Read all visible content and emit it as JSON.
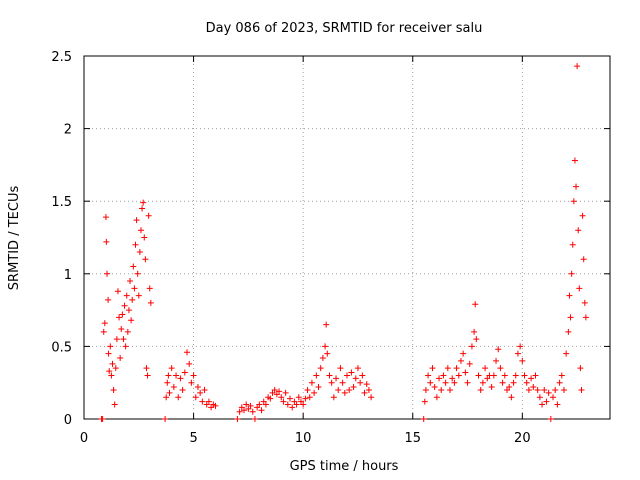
{
  "chart_data": {
    "type": "scatter",
    "title": "Day 086 of 2023, SRMTID for receiver salu",
    "xlabel": "GPS time / hours",
    "ylabel": "SRMTID / TECUs",
    "xlim": [
      0,
      24
    ],
    "ylim": [
      0,
      2.5
    ],
    "x_ticks": [
      0,
      5,
      10,
      15,
      20
    ],
    "y_ticks": [
      0,
      0.5,
      1,
      1.5,
      2,
      2.5
    ],
    "x_tick_labels": [
      "0",
      "5",
      "10",
      "15",
      "20"
    ],
    "y_tick_labels": [
      "0",
      "0.5",
      "1",
      "1.5",
      "2",
      "2.5"
    ],
    "grid": true,
    "marker": "plus",
    "color": "#ff0000",
    "series": [
      {
        "name": "SRMTID",
        "points": [
          [
            0.8,
            0.0
          ],
          [
            0.85,
            0.0
          ],
          [
            0.9,
            0.6
          ],
          [
            0.95,
            0.66
          ],
          [
            1.0,
            1.39
          ],
          [
            1.02,
            1.22
          ],
          [
            1.05,
            1.0
          ],
          [
            1.1,
            0.82
          ],
          [
            1.12,
            0.45
          ],
          [
            1.15,
            0.33
          ],
          [
            1.2,
            0.5
          ],
          [
            1.25,
            0.3
          ],
          [
            1.3,
            0.38
          ],
          [
            1.35,
            0.2
          ],
          [
            1.4,
            0.1
          ],
          [
            1.45,
            0.35
          ],
          [
            1.5,
            0.55
          ],
          [
            1.55,
            0.88
          ],
          [
            1.6,
            0.7
          ],
          [
            1.65,
            0.42
          ],
          [
            1.7,
            0.62
          ],
          [
            1.75,
            0.72
          ],
          [
            1.8,
            0.55
          ],
          [
            1.85,
            0.78
          ],
          [
            1.9,
            0.5
          ],
          [
            1.95,
            0.85
          ],
          [
            2.0,
            0.6
          ],
          [
            2.05,
            0.75
          ],
          [
            2.1,
            0.95
          ],
          [
            2.15,
            0.68
          ],
          [
            2.2,
            0.82
          ],
          [
            2.25,
            1.05
          ],
          [
            2.3,
            0.9
          ],
          [
            2.35,
            1.2
          ],
          [
            2.4,
            1.37
          ],
          [
            2.45,
            1.0
          ],
          [
            2.5,
            0.85
          ],
          [
            2.55,
            1.15
          ],
          [
            2.6,
            1.3
          ],
          [
            2.65,
            1.45
          ],
          [
            2.7,
            1.49
          ],
          [
            2.75,
            1.25
          ],
          [
            2.8,
            1.1
          ],
          [
            2.85,
            0.35
          ],
          [
            2.9,
            0.3
          ],
          [
            2.95,
            1.4
          ],
          [
            3.0,
            0.9
          ],
          [
            3.05,
            0.8
          ],
          [
            3.7,
            0.0
          ],
          [
            3.75,
            0.15
          ],
          [
            3.8,
            0.25
          ],
          [
            3.85,
            0.3
          ],
          [
            3.9,
            0.18
          ],
          [
            4.0,
            0.35
          ],
          [
            4.1,
            0.22
          ],
          [
            4.2,
            0.3
          ],
          [
            4.3,
            0.15
          ],
          [
            4.4,
            0.28
          ],
          [
            4.5,
            0.2
          ],
          [
            4.6,
            0.32
          ],
          [
            4.7,
            0.46
          ],
          [
            4.8,
            0.38
          ],
          [
            4.9,
            0.25
          ],
          [
            5.0,
            0.3
          ],
          [
            5.1,
            0.15
          ],
          [
            5.2,
            0.22
          ],
          [
            5.3,
            0.18
          ],
          [
            5.4,
            0.12
          ],
          [
            5.5,
            0.2
          ],
          [
            5.6,
            0.1
          ],
          [
            5.7,
            0.12
          ],
          [
            5.8,
            0.08
          ],
          [
            5.9,
            0.1
          ],
          [
            6.0,
            0.09
          ],
          [
            7.0,
            0.0
          ],
          [
            7.1,
            0.05
          ],
          [
            7.2,
            0.08
          ],
          [
            7.3,
            0.06
          ],
          [
            7.4,
            0.1
          ],
          [
            7.5,
            0.07
          ],
          [
            7.6,
            0.09
          ],
          [
            7.7,
            0.05
          ],
          [
            7.8,
            0.0
          ],
          [
            7.9,
            0.08
          ],
          [
            8.0,
            0.1
          ],
          [
            8.1,
            0.06
          ],
          [
            8.2,
            0.12
          ],
          [
            8.3,
            0.1
          ],
          [
            8.4,
            0.15
          ],
          [
            8.5,
            0.14
          ],
          [
            8.6,
            0.18
          ],
          [
            8.7,
            0.2
          ],
          [
            8.8,
            0.17
          ],
          [
            8.9,
            0.19
          ],
          [
            9.0,
            0.15
          ],
          [
            9.1,
            0.12
          ],
          [
            9.2,
            0.18
          ],
          [
            9.3,
            0.1
          ],
          [
            9.4,
            0.14
          ],
          [
            9.5,
            0.08
          ],
          [
            9.6,
            0.12
          ],
          [
            9.7,
            0.1
          ],
          [
            9.8,
            0.15
          ],
          [
            9.9,
            0.12
          ],
          [
            10.0,
            0.1
          ],
          [
            10.1,
            0.14
          ],
          [
            10.2,
            0.2
          ],
          [
            10.3,
            0.15
          ],
          [
            10.4,
            0.25
          ],
          [
            10.5,
            0.18
          ],
          [
            10.6,
            0.3
          ],
          [
            10.7,
            0.22
          ],
          [
            10.8,
            0.35
          ],
          [
            10.9,
            0.42
          ],
          [
            11.0,
            0.5
          ],
          [
            11.05,
            0.65
          ],
          [
            11.1,
            0.45
          ],
          [
            11.2,
            0.3
          ],
          [
            11.3,
            0.25
          ],
          [
            11.4,
            0.15
          ],
          [
            11.5,
            0.28
          ],
          [
            11.6,
            0.2
          ],
          [
            11.7,
            0.35
          ],
          [
            11.8,
            0.25
          ],
          [
            11.9,
            0.18
          ],
          [
            12.0,
            0.3
          ],
          [
            12.1,
            0.2
          ],
          [
            12.2,
            0.32
          ],
          [
            12.3,
            0.22
          ],
          [
            12.4,
            0.28
          ],
          [
            12.5,
            0.35
          ],
          [
            12.6,
            0.25
          ],
          [
            12.7,
            0.3
          ],
          [
            12.8,
            0.18
          ],
          [
            12.9,
            0.24
          ],
          [
            13.0,
            0.2
          ],
          [
            13.1,
            0.15
          ],
          [
            15.5,
            0.0
          ],
          [
            15.55,
            0.12
          ],
          [
            15.6,
            0.2
          ],
          [
            15.7,
            0.3
          ],
          [
            15.8,
            0.25
          ],
          [
            15.9,
            0.35
          ],
          [
            16.0,
            0.22
          ],
          [
            16.1,
            0.15
          ],
          [
            16.2,
            0.28
          ],
          [
            16.3,
            0.2
          ],
          [
            16.4,
            0.3
          ],
          [
            16.5,
            0.25
          ],
          [
            16.6,
            0.35
          ],
          [
            16.7,
            0.2
          ],
          [
            16.8,
            0.28
          ],
          [
            16.9,
            0.25
          ],
          [
            17.0,
            0.35
          ],
          [
            17.1,
            0.3
          ],
          [
            17.2,
            0.4
          ],
          [
            17.3,
            0.45
          ],
          [
            17.4,
            0.32
          ],
          [
            17.5,
            0.25
          ],
          [
            17.6,
            0.38
          ],
          [
            17.7,
            0.5
          ],
          [
            17.8,
            0.6
          ],
          [
            17.85,
            0.79
          ],
          [
            17.9,
            0.55
          ],
          [
            18.0,
            0.3
          ],
          [
            18.1,
            0.2
          ],
          [
            18.2,
            0.25
          ],
          [
            18.3,
            0.35
          ],
          [
            18.4,
            0.28
          ],
          [
            18.5,
            0.3
          ],
          [
            18.6,
            0.22
          ],
          [
            18.7,
            0.3
          ],
          [
            18.8,
            0.4
          ],
          [
            18.9,
            0.48
          ],
          [
            19.0,
            0.35
          ],
          [
            19.1,
            0.25
          ],
          [
            19.2,
            0.3
          ],
          [
            19.3,
            0.2
          ],
          [
            19.4,
            0.22
          ],
          [
            19.5,
            0.15
          ],
          [
            19.6,
            0.25
          ],
          [
            19.7,
            0.3
          ],
          [
            19.8,
            0.45
          ],
          [
            19.9,
            0.5
          ],
          [
            20.0,
            0.4
          ],
          [
            20.1,
            0.3
          ],
          [
            20.2,
            0.25
          ],
          [
            20.3,
            0.2
          ],
          [
            20.4,
            0.28
          ],
          [
            20.5,
            0.22
          ],
          [
            20.6,
            0.3
          ],
          [
            20.7,
            0.2
          ],
          [
            20.8,
            0.15
          ],
          [
            20.9,
            0.1
          ],
          [
            21.0,
            0.2
          ],
          [
            21.1,
            0.12
          ],
          [
            21.2,
            0.18
          ],
          [
            21.3,
            0.0
          ],
          [
            21.4,
            0.15
          ],
          [
            21.5,
            0.2
          ],
          [
            21.6,
            0.1
          ],
          [
            21.7,
            0.25
          ],
          [
            21.8,
            0.3
          ],
          [
            21.9,
            0.2
          ],
          [
            22.0,
            0.45
          ],
          [
            22.1,
            0.6
          ],
          [
            22.15,
            0.85
          ],
          [
            22.2,
            0.7
          ],
          [
            22.25,
            1.0
          ],
          [
            22.3,
            1.2
          ],
          [
            22.35,
            1.5
          ],
          [
            22.4,
            1.78
          ],
          [
            22.45,
            1.6
          ],
          [
            22.5,
            2.43
          ],
          [
            22.55,
            1.3
          ],
          [
            22.6,
            0.9
          ],
          [
            22.65,
            0.35
          ],
          [
            22.7,
            0.2
          ],
          [
            22.75,
            1.4
          ],
          [
            22.8,
            1.1
          ],
          [
            22.85,
            0.8
          ],
          [
            22.9,
            0.7
          ]
        ]
      }
    ]
  }
}
